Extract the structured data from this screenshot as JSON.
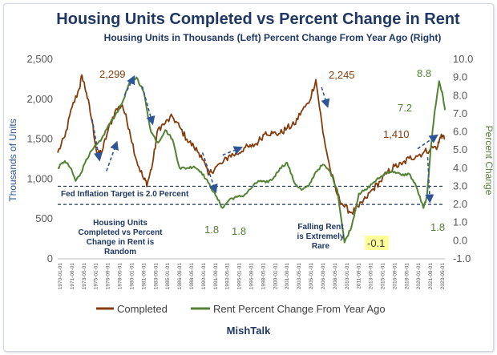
{
  "chart_data": {
    "type": "line",
    "title": "Housing Units Completed vs Percent Change in Rent",
    "subtitle": "Housing Units in Thousands (Left) Percent Change From Year Ago (Right)",
    "ylabel_left": "Thousands of Units",
    "ylabel_right": "Percent Change",
    "ylim_left": [
      0,
      2500
    ],
    "ylim_right": [
      -1.0,
      10.0
    ],
    "yticks_left": [
      "0",
      "500",
      "1,000",
      "1,500",
      "2,000",
      "2,500"
    ],
    "yticks_right": [
      "-1.0",
      "0.0",
      "1.0",
      "2.0",
      "3.0",
      "4.0",
      "5.0",
      "6.0",
      "7.0",
      "8.0",
      "9.0",
      "10.0"
    ],
    "x_start_year": 1970,
    "x_end_year": 2024,
    "xtick_labels": [
      "1970-01-01",
      "1971-09-01",
      "1973-05-01",
      "1975-01-01",
      "1976-09-01",
      "1978-05-01",
      "1980-01-01",
      "1981-09-01",
      "1983-05-01",
      "1985-01-01",
      "1986-09-01",
      "1988-05-01",
      "1990-01-01",
      "1991-09-01",
      "1993-05-01",
      "1995-01-01",
      "1996-09-01",
      "1998-05-01",
      "2000-01-01",
      "2001-09-01",
      "2003-05-01",
      "2005-01-01",
      "2006-09-01",
      "2008-05-01",
      "2010-01-01",
      "2011-09-01",
      "2013-05-01",
      "2015-01-01",
      "2016-09-01",
      "2018-05-01",
      "2020-01-01",
      "2021-09-01",
      "2023-05-01"
    ],
    "series": [
      {
        "name": "Completed",
        "axis": "left",
        "color": "#843c0c",
        "points": [
          [
            1970.0,
            1330
          ],
          [
            1971.0,
            1530
          ],
          [
            1972.0,
            1900
          ],
          [
            1973.0,
            2130
          ],
          [
            1973.4,
            2299
          ],
          [
            1974.0,
            2080
          ],
          [
            1974.8,
            1720
          ],
          [
            1975.5,
            1300
          ],
          [
            1976.2,
            1350
          ],
          [
            1977.0,
            1600
          ],
          [
            1978.0,
            1850
          ],
          [
            1979.0,
            1930
          ],
          [
            1980.0,
            1620
          ],
          [
            1981.0,
            1230
          ],
          [
            1982.0,
            1000
          ],
          [
            1982.5,
            940
          ],
          [
            1983.2,
            1180
          ],
          [
            1984.0,
            1630
          ],
          [
            1985.0,
            1700
          ],
          [
            1986.0,
            1780
          ],
          [
            1987.0,
            1650
          ],
          [
            1988.0,
            1500
          ],
          [
            1989.0,
            1400
          ],
          [
            1990.0,
            1300
          ],
          [
            1991.0,
            1050
          ],
          [
            1992.0,
            1150
          ],
          [
            1993.0,
            1200
          ],
          [
            1994.0,
            1300
          ],
          [
            1995.0,
            1310
          ],
          [
            1996.0,
            1390
          ],
          [
            1997.0,
            1400
          ],
          [
            1998.0,
            1470
          ],
          [
            1999.0,
            1590
          ],
          [
            2000.0,
            1570
          ],
          [
            2001.0,
            1570
          ],
          [
            2002.0,
            1640
          ],
          [
            2003.0,
            1680
          ],
          [
            2004.0,
            1850
          ],
          [
            2005.0,
            1950
          ],
          [
            2006.0,
            2245
          ],
          [
            2007.0,
            1580
          ],
          [
            2008.0,
            1120
          ],
          [
            2009.0,
            800
          ],
          [
            2010.0,
            650
          ],
          [
            2011.0,
            580
          ],
          [
            2012.0,
            650
          ],
          [
            2013.0,
            760
          ],
          [
            2014.0,
            880
          ],
          [
            2015.0,
            970
          ],
          [
            2016.0,
            1080
          ],
          [
            2017.0,
            1160
          ],
          [
            2018.0,
            1180
          ],
          [
            2019.0,
            1260
          ],
          [
            2020.0,
            1290
          ],
          [
            2021.0,
            1330
          ],
          [
            2022.0,
            1380
          ],
          [
            2023.0,
            1410
          ],
          [
            2023.5,
            1560
          ],
          [
            2024.0,
            1500
          ]
        ]
      },
      {
        "name": "Rent Percent Change From Year Ago",
        "axis": "right",
        "color": "#548235",
        "points": [
          [
            1970.0,
            4.0
          ],
          [
            1971.0,
            4.4
          ],
          [
            1971.8,
            4.0
          ],
          [
            1972.5,
            3.3
          ],
          [
            1973.2,
            3.7
          ],
          [
            1974.0,
            4.5
          ],
          [
            1975.0,
            5.1
          ],
          [
            1976.0,
            5.5
          ],
          [
            1977.0,
            6.3
          ],
          [
            1978.0,
            6.9
          ],
          [
            1979.0,
            7.6
          ],
          [
            1980.0,
            8.7
          ],
          [
            1981.0,
            9.0
          ],
          [
            1982.0,
            8.2
          ],
          [
            1983.0,
            6.0
          ],
          [
            1984.0,
            5.4
          ],
          [
            1985.0,
            6.1
          ],
          [
            1986.0,
            5.6
          ],
          [
            1987.0,
            4.0
          ],
          [
            1988.0,
            4.0
          ],
          [
            1989.0,
            4.1
          ],
          [
            1990.0,
            3.8
          ],
          [
            1991.0,
            3.2
          ],
          [
            1992.0,
            2.5
          ],
          [
            1993.0,
            1.8
          ],
          [
            1994.0,
            2.3
          ],
          [
            1995.0,
            2.4
          ],
          [
            1996.0,
            2.5
          ],
          [
            1997.0,
            2.9
          ],
          [
            1998.0,
            3.3
          ],
          [
            1999.0,
            3.2
          ],
          [
            2000.0,
            3.4
          ],
          [
            2001.0,
            4.0
          ],
          [
            2002.0,
            4.3
          ],
          [
            2003.0,
            3.2
          ],
          [
            2004.0,
            2.8
          ],
          [
            2005.0,
            3.0
          ],
          [
            2006.0,
            3.8
          ],
          [
            2007.0,
            4.2
          ],
          [
            2008.0,
            3.8
          ],
          [
            2009.0,
            2.8
          ],
          [
            2010.0,
            -0.1
          ],
          [
            2011.0,
            0.8
          ],
          [
            2012.0,
            2.6
          ],
          [
            2013.0,
            2.8
          ],
          [
            2014.0,
            3.2
          ],
          [
            2015.0,
            3.5
          ],
          [
            2016.0,
            3.8
          ],
          [
            2017.0,
            3.8
          ],
          [
            2018.0,
            3.6
          ],
          [
            2019.0,
            3.7
          ],
          [
            2020.0,
            3.0
          ],
          [
            2021.0,
            1.8
          ],
          [
            2021.5,
            2.4
          ],
          [
            2022.0,
            5.0
          ],
          [
            2022.6,
            7.2
          ],
          [
            2023.2,
            8.8
          ],
          [
            2023.7,
            8.0
          ],
          [
            2024.0,
            7.2
          ]
        ]
      }
    ],
    "reference_lines": [
      {
        "value": 2.0,
        "axis": "right",
        "label": "Fed Inflation Target is 2.0 Percent"
      },
      {
        "value": 3.0,
        "axis": "right",
        "label": ""
      }
    ],
    "data_labels": [
      {
        "text": "2,299",
        "series": "Completed"
      },
      {
        "text": "2,245",
        "series": "Completed"
      },
      {
        "text": "1,410",
        "series": "Completed"
      },
      {
        "text": "1.8",
        "series": "Rent Percent Change From Year Ago"
      },
      {
        "text": "1.8",
        "series": "Rent Percent Change From Year Ago"
      },
      {
        "text": "-0.1",
        "series": "Rent Percent Change From Year Ago"
      },
      {
        "text": "1.8",
        "series": "Rent Percent Change From Year Ago"
      },
      {
        "text": "7.2",
        "series": "Rent Percent Change From Year Ago"
      },
      {
        "text": "8.8",
        "series": "Rent Percent Change From Year Ago"
      }
    ],
    "annotations": [
      "Housing Units Completed vs Percent Change in Rent is Random",
      "Falling Rent is Extremely Rare"
    ],
    "legend_position": "bottom",
    "grid": false
  },
  "footer": "MishTalk"
}
